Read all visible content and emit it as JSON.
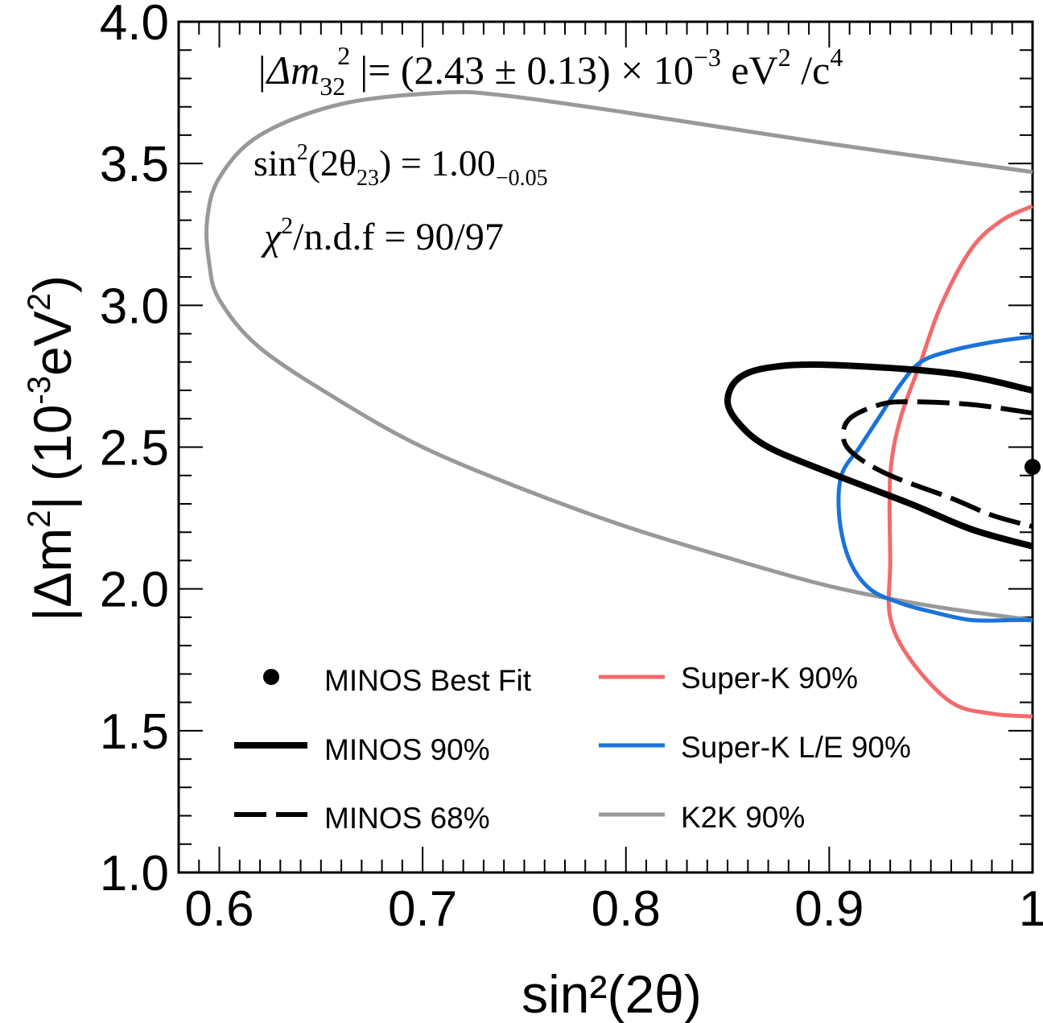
{
  "chart_data": {
    "type": "line",
    "xlabel": "sin²(2θ)",
    "ylabel_parts": {
      "abs_open": "|Δm",
      "sup1": "2",
      "mid": "| (10",
      "sup2": "-3",
      "ev": "eV",
      "sup3": "2",
      "close": ")"
    },
    "xlim": [
      0.58,
      1.0
    ],
    "ylim": [
      1.0,
      4.0
    ],
    "x_ticks": [
      "0.6",
      "0.7",
      "0.8",
      "0.9",
      "1"
    ],
    "y_ticks": [
      "1.0",
      "1.5",
      "2.0",
      "2.5",
      "3.0",
      "3.5",
      "4.0"
    ],
    "annotations": {
      "line1": {
        "a": "|Δm",
        "sub": "32",
        "sup": "2",
        "b": "|= (2.43 ± 0.13) × 10",
        "exp": "−3",
        "c": " eV",
        "sup2": "2",
        "d": " /c",
        "sup4": "4"
      },
      "line2": {
        "a": "sin",
        "sup": "2",
        "b": "(2θ",
        "sub": "23",
        "c": ") = 1.00",
        "sub2": "−0.05"
      },
      "line3": {
        "a": "χ",
        "sup": "2",
        "b": "/n.d.f = 90/97"
      }
    },
    "legend": [
      {
        "label": "MINOS Best Fit",
        "style": "dot"
      },
      {
        "label": "MINOS 90%",
        "style": "solid-thick"
      },
      {
        "label": "MINOS 68%",
        "style": "dashed"
      },
      {
        "label": "Super-K 90%",
        "style": "solid"
      },
      {
        "label": "Super-K L/E 90%",
        "style": "solid"
      },
      {
        "label": "K2K 90%",
        "style": "solid"
      }
    ],
    "colors": {
      "minos": "#000000",
      "superk": "#f26b6b",
      "superk_le": "#1a73d9",
      "k2k": "#999999"
    },
    "best_fit": {
      "x": 1.0,
      "y": 2.43
    },
    "series": [
      {
        "name": "K2K 90%",
        "x": [
          1.0,
          0.9,
          0.8,
          0.74,
          0.71,
          0.66,
          0.62,
          0.6,
          0.594,
          0.595,
          0.6,
          0.62,
          0.66,
          0.7,
          0.75,
          0.8,
          0.85,
          0.9,
          0.95,
          1.0
        ],
        "y": [
          3.47,
          3.57,
          3.68,
          3.74,
          3.75,
          3.71,
          3.6,
          3.45,
          3.3,
          3.15,
          3.02,
          2.85,
          2.66,
          2.5,
          2.35,
          2.22,
          2.11,
          2.01,
          1.94,
          1.89
        ]
      },
      {
        "name": "Super-K 90%",
        "x": [
          1.0,
          0.985,
          0.97,
          0.955,
          0.945,
          0.935,
          0.93,
          0.93,
          0.93,
          0.94,
          0.96,
          0.98,
          1.0
        ],
        "y": [
          3.35,
          3.3,
          3.2,
          3.0,
          2.8,
          2.6,
          2.4,
          2.1,
          1.9,
          1.75,
          1.6,
          1.56,
          1.55
        ]
      },
      {
        "name": "Super-K L/E 90%",
        "x": [
          1.0,
          0.98,
          0.96,
          0.945,
          0.935,
          0.925,
          0.915,
          0.906,
          0.905,
          0.91,
          0.92,
          0.935,
          0.95,
          0.97,
          0.99,
          1.0
        ],
        "y": [
          2.89,
          2.87,
          2.84,
          2.8,
          2.72,
          2.61,
          2.5,
          2.4,
          2.25,
          2.1,
          2.0,
          1.95,
          1.92,
          1.89,
          1.89,
          1.89
        ]
      },
      {
        "name": "MINOS 90%",
        "x": [
          1.0,
          0.96,
          0.9,
          0.87,
          0.855,
          0.85,
          0.856,
          0.87,
          0.9,
          0.94,
          0.97,
          1.0
        ],
        "y": [
          2.7,
          2.76,
          2.79,
          2.78,
          2.74,
          2.66,
          2.58,
          2.5,
          2.41,
          2.3,
          2.21,
          2.15
        ]
      },
      {
        "name": "MINOS 68%",
        "x": [
          1.0,
          0.97,
          0.94,
          0.925,
          0.91,
          0.907,
          0.913,
          0.93,
          0.96,
          0.98,
          1.0
        ],
        "y": [
          2.62,
          2.65,
          2.66,
          2.65,
          2.6,
          2.53,
          2.47,
          2.4,
          2.32,
          2.26,
          2.22
        ]
      }
    ]
  }
}
